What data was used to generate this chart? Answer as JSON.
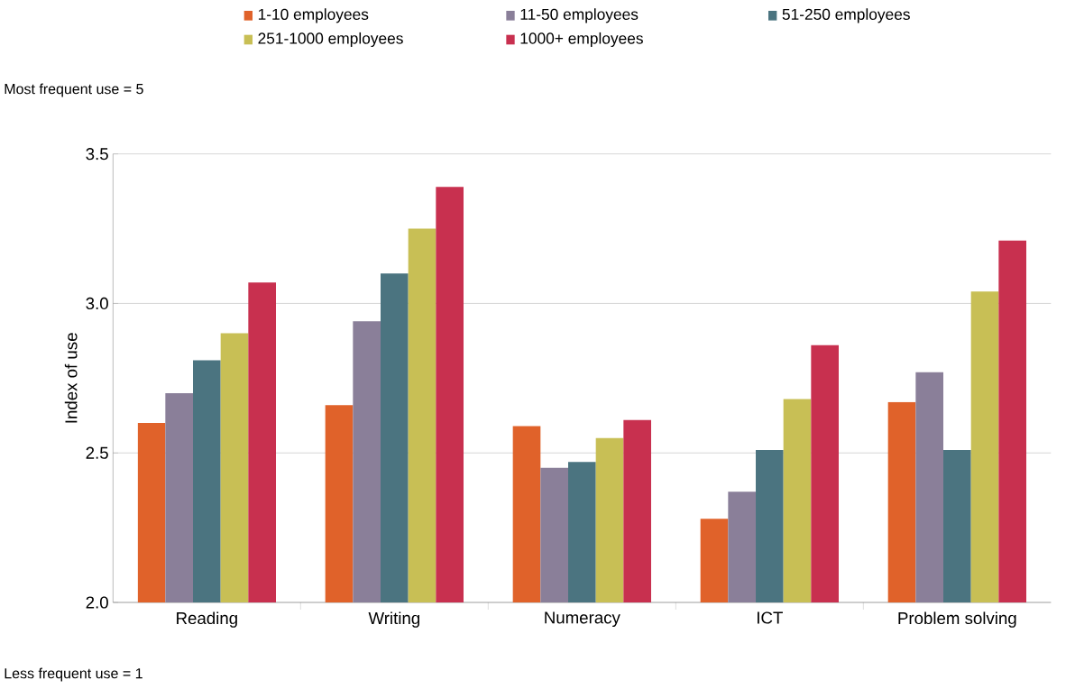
{
  "chart_data": {
    "type": "bar",
    "ylabel": "Index of use",
    "categories": [
      "Reading",
      "Writing",
      "Numeracy",
      "ICT",
      "Problem solving"
    ],
    "series": [
      {
        "name": "1-10 employees",
        "color": "#e0622a",
        "values": [
          2.6,
          2.66,
          2.59,
          2.28,
          2.67
        ]
      },
      {
        "name": "11-50 employees",
        "color": "#8a7f99",
        "values": [
          2.7,
          2.94,
          2.45,
          2.37,
          2.77
        ]
      },
      {
        "name": "51-250 employees",
        "color": "#4b7480",
        "values": [
          2.81,
          3.1,
          2.47,
          2.51,
          2.51
        ]
      },
      {
        "name": "251-1000 employees",
        "color": "#c8bf55",
        "values": [
          2.9,
          3.25,
          2.55,
          2.68,
          3.04
        ]
      },
      {
        "name": "1000+ employees",
        "color": "#c8304f",
        "values": [
          3.07,
          3.39,
          2.61,
          2.86,
          3.21
        ]
      }
    ],
    "ylim": [
      2.0,
      3.5
    ],
    "yticks": [
      {
        "value": 2.0,
        "label": "2.0"
      },
      {
        "value": 2.5,
        "label": "2.5"
      },
      {
        "value": 3.0,
        "label": "3.0"
      },
      {
        "value": 3.5,
        "label": "3.5"
      }
    ],
    "grid": "y",
    "legend": "top",
    "annotations": [
      "Most frequent use = 5",
      "Less frequent use = 1"
    ]
  }
}
